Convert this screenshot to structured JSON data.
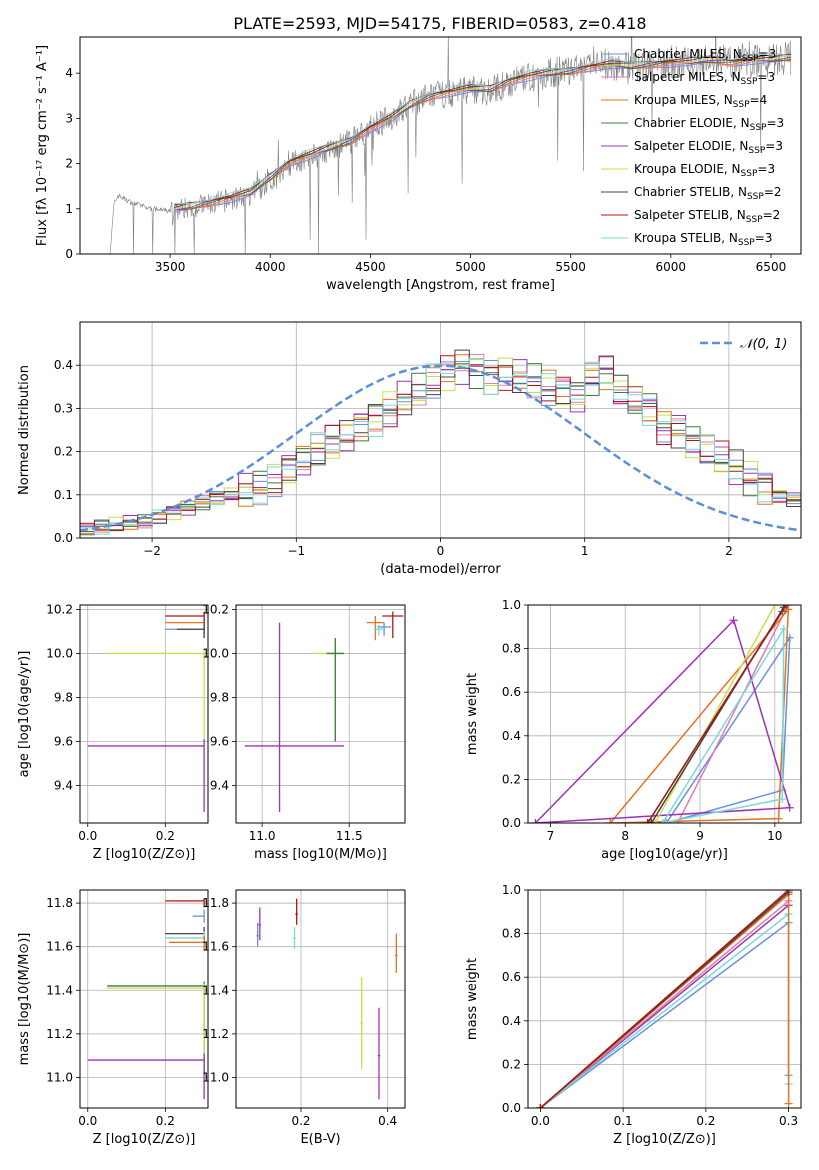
{
  "figure_title": "PLATE=2593, MJD=54175, FIBERID=0583, z=0.418",
  "chart_data": [
    {
      "id": "spectrum",
      "type": "line",
      "xlabel": "wavelength [Angstrom, rest frame]",
      "ylabel": "Flux [fλ 10⁻¹⁷ erg cm⁻² s⁻¹ A⁻¹]",
      "xlim": [
        3050,
        6650
      ],
      "ylim": [
        0,
        4.8
      ],
      "xticks": [
        3500,
        4000,
        4500,
        5000,
        5500,
        6000,
        6500
      ],
      "yticks": [
        0,
        1,
        2,
        3,
        4
      ],
      "grid": false,
      "legend_position": "upper right",
      "observed": {
        "color": "#808080",
        "x": [
          3200,
          3220,
          3240,
          3300,
          3400,
          3500,
          3600,
          3700,
          3800,
          3900,
          4000,
          4100,
          4200,
          4300,
          4400,
          4500,
          4600,
          4700,
          4800,
          4900,
          5000,
          5100,
          5200,
          5300,
          5400,
          5500,
          5600,
          5700,
          5800,
          5900,
          6000,
          6100,
          6200,
          6300,
          6400,
          6500,
          6600
        ],
        "y": [
          0,
          1.1,
          1.3,
          1.15,
          1.0,
          0.95,
          1.05,
          1.1,
          1.2,
          1.3,
          1.6,
          2.0,
          2.15,
          2.3,
          2.5,
          2.8,
          3.0,
          3.3,
          3.5,
          3.55,
          3.65,
          3.6,
          3.8,
          3.9,
          4.0,
          4.05,
          4.15,
          4.2,
          4.1,
          4.2,
          4.25,
          4.2,
          4.3,
          4.25,
          4.3,
          4.3,
          4.35
        ]
      },
      "model_x": [
        3520,
        3600,
        3700,
        3800,
        3900,
        4000,
        4100,
        4200,
        4300,
        4400,
        4500,
        4600,
        4700,
        4800,
        4900,
        5000,
        5100,
        5200,
        5300,
        5400,
        5500,
        5600,
        5700,
        5800,
        5900,
        6000,
        6100,
        6200,
        6300,
        6400,
        6500,
        6600
      ],
      "model_y": [
        1.0,
        1.05,
        1.15,
        1.25,
        1.35,
        1.7,
        2.05,
        2.2,
        2.35,
        2.5,
        2.8,
        3.0,
        3.3,
        3.5,
        3.6,
        3.65,
        3.65,
        3.85,
        3.95,
        4.0,
        4.05,
        4.15,
        4.2,
        4.15,
        4.2,
        4.25,
        4.25,
        4.3,
        4.25,
        4.3,
        4.3,
        4.35
      ],
      "series": [
        {
          "name": "Chabrier MILES",
          "nssp": "3",
          "color": "#6a8fdc"
        },
        {
          "name": "Salpeter MILES",
          "nssp": "3",
          "color": "#e37bb4"
        },
        {
          "name": "Kroupa MILES",
          "nssp": "4",
          "color": "#e2731f"
        },
        {
          "name": "Chabrier ELODIE",
          "nssp": "3",
          "color": "#3d7d3d"
        },
        {
          "name": "Salpeter ELODIE",
          "nssp": "3",
          "color": "#9b34b4"
        },
        {
          "name": "Kroupa ELODIE",
          "nssp": "3",
          "color": "#c8df4a"
        },
        {
          "name": "Chabrier STELIB",
          "nssp": "2",
          "color": "#444444"
        },
        {
          "name": "Salpeter STELIB",
          "nssp": "2",
          "color": "#b01515"
        },
        {
          "name": "Kroupa STELIB",
          "nssp": "3",
          "color": "#7bd8da"
        }
      ]
    },
    {
      "id": "residuals",
      "type": "step",
      "xlabel": "(data-model)/error",
      "ylabel": "Normed distribution",
      "xlim": [
        -2.5,
        2.5
      ],
      "ylim": [
        0,
        0.5
      ],
      "xticks": [
        -2,
        -1,
        0,
        1,
        2
      ],
      "yticks": [
        0.0,
        0.1,
        0.2,
        0.3,
        0.4
      ],
      "grid": true,
      "legend_label": "𝒩(0, 1)",
      "legend_position": "upper right",
      "gaussian": {
        "mean": 0,
        "sigma": 1,
        "color": "#5b8fd6"
      },
      "bin_width": 0.1,
      "bins_start": -2.5,
      "base": [
        0.02,
        0.025,
        0.03,
        0.035,
        0.04,
        0.05,
        0.06,
        0.07,
        0.08,
        0.09,
        0.1,
        0.11,
        0.12,
        0.14,
        0.16,
        0.18,
        0.2,
        0.22,
        0.24,
        0.26,
        0.28,
        0.3,
        0.32,
        0.34,
        0.36,
        0.38,
        0.4,
        0.39,
        0.37,
        0.38,
        0.37,
        0.36,
        0.35,
        0.34,
        0.33,
        0.37,
        0.38,
        0.34,
        0.32,
        0.3,
        0.26,
        0.25,
        0.22,
        0.2,
        0.18,
        0.16,
        0.14,
        0.12,
        0.1,
        0.09,
        0.08,
        0.07,
        0.06,
        0.055,
        0.05,
        0.045,
        0.04,
        0.035,
        0.03,
        0.03
      ],
      "colors": [
        "#6a8fdc",
        "#e37bb4",
        "#e2731f",
        "#3d7d3d",
        "#9b34b4",
        "#c8df4a",
        "#444444",
        "#b01515",
        "#7bd8da"
      ]
    },
    {
      "id": "age-vs-Z",
      "type": "errorbar",
      "xlabel": "Z [log10(Z/Z⊙)]",
      "ylabel": "age  [log10(age/yr)]",
      "xlim": [
        -0.02,
        0.31
      ],
      "ylim": [
        9.23,
        10.22
      ],
      "xticks": [
        0.0,
        0.2
      ],
      "yticks": [
        9.4,
        9.6,
        9.8,
        10.0,
        10.2
      ],
      "grid": true,
      "points": [
        {
          "x": 0.3,
          "y": 10.11,
          "xerr": [
            0.1,
            0
          ],
          "yerr": [
            0.04,
            0.02
          ],
          "color": "#6a8fdc"
        },
        {
          "x": 0.3,
          "y": 10.14,
          "xerr": [
            0.1,
            0
          ],
          "yerr": [
            0.04,
            0.02
          ],
          "color": "#e2731f"
        },
        {
          "x": 0.3,
          "y": 10.17,
          "xerr": [
            0.1,
            0
          ],
          "yerr": [
            0.03,
            0.02
          ],
          "color": "#b01515"
        },
        {
          "x": 0.3,
          "y": 10.11,
          "xerr": [
            0.07,
            0
          ],
          "yerr": [
            0.04,
            0.03
          ],
          "color": "#444444"
        },
        {
          "x": 0.3,
          "y": 10.0,
          "xerr": [
            0.25,
            0
          ],
          "yerr": [
            0.4,
            0.02
          ],
          "color": "#c8df4a"
        },
        {
          "x": 0.3,
          "y": 9.58,
          "xerr": [
            0.3,
            0
          ],
          "yerr": [
            0.3,
            0.03
          ],
          "color": "#9b34b4"
        }
      ]
    },
    {
      "id": "age-vs-mass",
      "type": "errorbar",
      "xlabel": "mass [log10(M/M⊙)]",
      "xlim": [
        10.85,
        11.82
      ],
      "ylim": [
        9.23,
        10.22
      ],
      "xticks": [
        11.0,
        11.5
      ],
      "yticks": [
        9.4,
        9.6,
        9.8,
        10.0,
        10.2
      ],
      "grid": true,
      "points": [
        {
          "x": 11.75,
          "y": 10.17,
          "xerr": [
            0.06,
            0.06
          ],
          "yerr": [
            0.1,
            0.02
          ],
          "color": "#b01515"
        },
        {
          "x": 11.65,
          "y": 10.14,
          "xerr": [
            0.05,
            0.05
          ],
          "yerr": [
            0.08,
            0.03
          ],
          "color": "#e2731f"
        },
        {
          "x": 11.7,
          "y": 10.12,
          "xerr": [
            0.04,
            0.04
          ],
          "yerr": [
            0.04,
            0.02
          ],
          "color": "#6a8fdc"
        },
        {
          "x": 11.67,
          "y": 10.11,
          "xerr": [
            0.03,
            0.03
          ],
          "yerr": [
            0.03,
            0.02
          ],
          "color": "#7bd8da"
        },
        {
          "x": 11.42,
          "y": 10.0,
          "xerr": [
            0.13,
            0.05
          ],
          "yerr": [
            0.4,
            0.07
          ],
          "color": "#c8df4a"
        },
        {
          "x": 11.42,
          "y": 10.0,
          "xerr": [
            0.05,
            0.05
          ],
          "yerr": [
            0.4,
            0.07
          ],
          "color": "#3d7d3d"
        },
        {
          "x": 11.1,
          "y": 9.58,
          "xerr": [
            0.2,
            0.37
          ],
          "yerr": [
            0.3,
            0.56
          ],
          "color": "#9b34b4"
        }
      ]
    },
    {
      "id": "massweight-vs-age",
      "type": "line",
      "xlabel": "age  [log10(age/yr)]",
      "ylabel": "mass weight",
      "xlim": [
        6.7,
        10.35
      ],
      "ylim": [
        0,
        1.0
      ],
      "xticks": [
        7,
        8,
        9,
        10
      ],
      "yticks": [
        0.0,
        0.2,
        0.4,
        0.6,
        0.8,
        1.0
      ],
      "grid": true,
      "series": [
        {
          "color": "#6a8fdc",
          "x": [
            8.55,
            10.1,
            10.2,
            8.55
          ],
          "y": [
            0,
            0.15,
            0.85,
            0
          ]
        },
        {
          "color": "#e37bb4",
          "x": [
            8.7,
            10.18,
            8.7
          ],
          "y": [
            0,
            1.0,
            0
          ]
        },
        {
          "color": "#e2731f",
          "x": [
            7.8,
            10.05,
            10.18,
            7.8
          ],
          "y": [
            0,
            0.02,
            0.98,
            0
          ]
        },
        {
          "color": "#3d7d3d",
          "x": [
            8.3,
            10.1,
            8.3
          ],
          "y": [
            0,
            0.97,
            0
          ]
        },
        {
          "color": "#9b34b4",
          "x": [
            6.8,
            9.45,
            10.2,
            6.8
          ],
          "y": [
            0,
            0.93,
            0.07,
            0
          ]
        },
        {
          "color": "#c8df4a",
          "x": [
            8.4,
            10.0,
            8.4
          ],
          "y": [
            0,
            1.0,
            0
          ]
        },
        {
          "color": "#444444",
          "x": [
            8.35,
            10.12,
            8.35
          ],
          "y": [
            0,
            0.99,
            0
          ]
        },
        {
          "color": "#b01515",
          "x": [
            8.3,
            10.15,
            8.3
          ],
          "y": [
            0,
            1.0,
            0
          ]
        },
        {
          "color": "#7bd8da",
          "x": [
            8.5,
            10.1,
            10.12,
            8.5
          ],
          "y": [
            0,
            0.11,
            0.89,
            0
          ]
        }
      ]
    },
    {
      "id": "mass-vs-Z",
      "type": "errorbar",
      "xlabel": "Z [log10(Z/Z⊙)]",
      "ylabel": "mass [log10(M/M⊙)]",
      "xlim": [
        -0.02,
        0.31
      ],
      "ylim": [
        10.86,
        11.86
      ],
      "xticks": [
        0.0,
        0.2
      ],
      "yticks": [
        11.0,
        11.2,
        11.4,
        11.6,
        11.8
      ],
      "grid": true,
      "points": [
        {
          "x": 0.3,
          "y": 11.81,
          "xerr": [
            0.1,
            0
          ],
          "yerr": [
            0.03,
            0.01
          ],
          "color": "#b01515"
        },
        {
          "x": 0.3,
          "y": 11.74,
          "xerr": [
            0.03,
            0
          ],
          "yerr": [
            0.03,
            0.03
          ],
          "color": "#6a8fdc"
        },
        {
          "x": 0.3,
          "y": 11.66,
          "xerr": [
            0.1,
            0
          ],
          "yerr": [
            0.05,
            0.03
          ],
          "color": "#444444"
        },
        {
          "x": 0.3,
          "y": 11.64,
          "xerr": [
            0.1,
            0
          ],
          "yerr": [
            0.05,
            0.03
          ],
          "color": "#7bd8da"
        },
        {
          "x": 0.3,
          "y": 11.62,
          "xerr": [
            0.09,
            0
          ],
          "yerr": [
            0.04,
            0.03
          ],
          "color": "#e2731f"
        },
        {
          "x": 0.3,
          "y": 11.42,
          "xerr": [
            0.25,
            0
          ],
          "yerr": [
            0.4,
            0.02
          ],
          "color": "#3d7d3d"
        },
        {
          "x": 0.3,
          "y": 11.41,
          "xerr": [
            0.25,
            0
          ],
          "yerr": [
            0.35,
            0.02
          ],
          "color": "#c8df4a"
        },
        {
          "x": 0.3,
          "y": 11.08,
          "xerr": [
            0.3,
            0
          ],
          "yerr": [
            0.18,
            0.03
          ],
          "color": "#9b34b4"
        }
      ]
    },
    {
      "id": "mass-vs-ebv",
      "type": "errorbar",
      "xlabel": "E(B-V)",
      "xlim": [
        0.05,
        0.44
      ],
      "ylim": [
        10.86,
        11.86
      ],
      "xticks": [
        0.2,
        0.4
      ],
      "yticks": [
        11.0,
        11.2,
        11.4,
        11.6,
        11.8
      ],
      "grid": true,
      "points": [
        {
          "x": 0.105,
          "y": 11.7,
          "xerr": [
            0.003,
            0.003
          ],
          "yerr": [
            0.07,
            0.08
          ],
          "color": "#9b34b4"
        },
        {
          "x": 0.1,
          "y": 11.65,
          "xerr": [
            0.003,
            0.003
          ],
          "yerr": [
            0.05,
            0.06
          ],
          "color": "#6a8fdc"
        },
        {
          "x": 0.19,
          "y": 11.75,
          "xerr": [
            0.003,
            0.003
          ],
          "yerr": [
            0.05,
            0.07
          ],
          "color": "#b01515"
        },
        {
          "x": 0.185,
          "y": 11.64,
          "xerr": [
            0.003,
            0.003
          ],
          "yerr": [
            0.05,
            0.05
          ],
          "color": "#7bd8da"
        },
        {
          "x": 0.34,
          "y": 11.25,
          "xerr": [
            0.003,
            0.003
          ],
          "yerr": [
            0.21,
            0.21
          ],
          "color": "#c8df4a"
        },
        {
          "x": 0.38,
          "y": 11.1,
          "xerr": [
            0.003,
            0.003
          ],
          "yerr": [
            0.2,
            0.22
          ],
          "color": "#9b34b4"
        },
        {
          "x": 0.42,
          "y": 11.56,
          "xerr": [
            0.003,
            0.003
          ],
          "yerr": [
            0.08,
            0.1
          ],
          "color": "#e2731f"
        }
      ]
    },
    {
      "id": "massweight-vs-Z",
      "type": "line",
      "xlabel": "Z [log10(Z/Z⊙)]",
      "ylabel": "mass weight",
      "xlim": [
        -0.015,
        0.315
      ],
      "ylim": [
        0,
        1.0
      ],
      "xticks": [
        0.0,
        0.1,
        0.2,
        0.3
      ],
      "yticks": [
        0.0,
        0.2,
        0.4,
        0.6,
        0.8,
        1.0
      ],
      "grid": true,
      "series": [
        {
          "color": "#6a8fdc",
          "x": [
            0,
            0.3,
            0.3
          ],
          "y": [
            0,
            0.85,
            0.15
          ]
        },
        {
          "color": "#9b34b4",
          "x": [
            0,
            0.3
          ],
          "y": [
            0,
            0.93
          ]
        },
        {
          "color": "#e37bb4",
          "x": [
            0,
            0.3
          ],
          "y": [
            0,
            0.95
          ]
        },
        {
          "color": "#7bd8da",
          "x": [
            0,
            0.3,
            0.3
          ],
          "y": [
            0,
            0.89,
            0.11
          ]
        },
        {
          "color": "#e2731f",
          "x": [
            0,
            0.3,
            0.3
          ],
          "y": [
            0,
            0.98,
            0.02
          ]
        },
        {
          "color": "#c8df4a",
          "x": [
            0,
            0.3
          ],
          "y": [
            0,
            1.0
          ]
        },
        {
          "color": "#444444",
          "x": [
            0,
            0.3
          ],
          "y": [
            0,
            0.99
          ]
        },
        {
          "color": "#b01515",
          "x": [
            0,
            0.3
          ],
          "y": [
            0,
            1.0
          ]
        }
      ]
    }
  ]
}
